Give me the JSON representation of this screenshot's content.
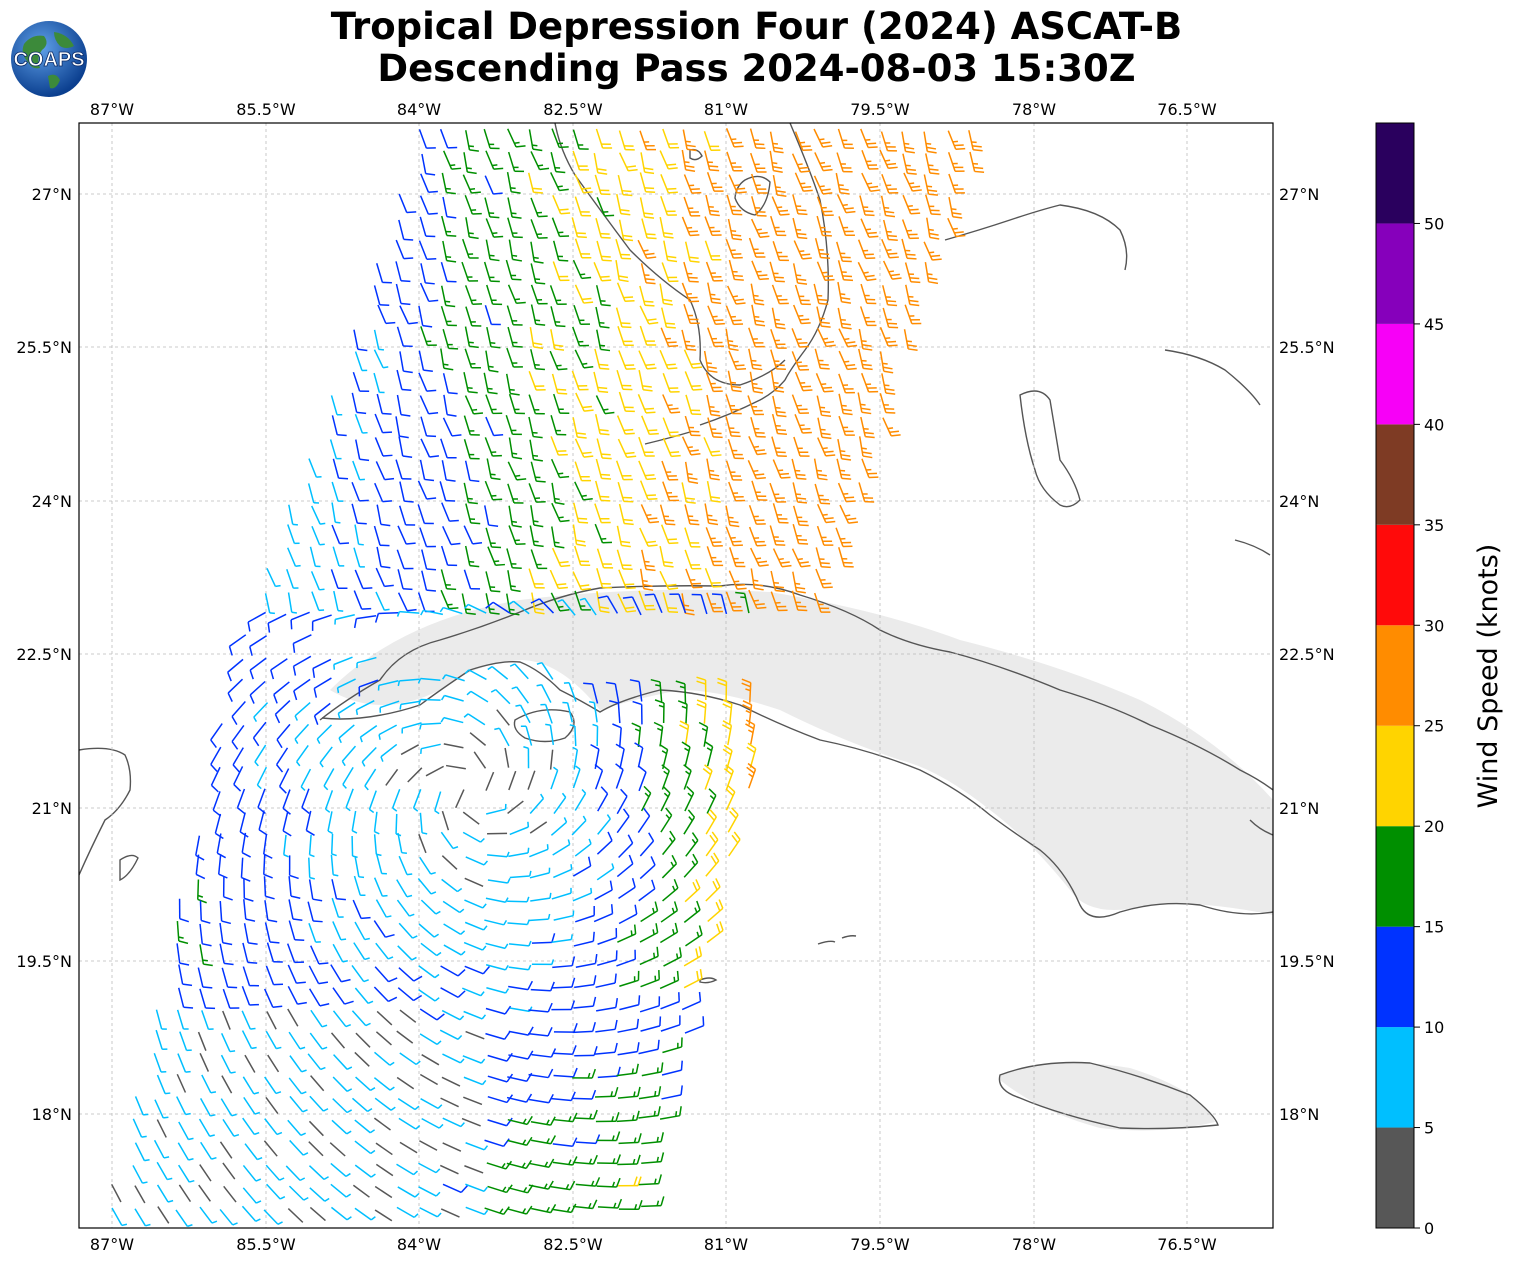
{
  "title": {
    "line1": "Tropical Depression Four (2024) ASCAT-B",
    "line2": "Descending Pass 2024-08-03 15:30Z"
  },
  "logo": {
    "text": "COAPS",
    "icon": "globe-logo-icon"
  },
  "axes": {
    "lon_ticks": [
      "87°W",
      "85.5°W",
      "84°W",
      "82.5°W",
      "81°W",
      "79.5°W",
      "78°W",
      "76.5°W"
    ],
    "lat_ticks": [
      "27°N",
      "25.5°N",
      "24°N",
      "22.5°N",
      "21°N",
      "19.5°N",
      "18°N"
    ],
    "lon_range": [
      -87.3,
      -75.6
    ],
    "lat_range": [
      16.9,
      27.7
    ],
    "grid": true
  },
  "colorbar": {
    "label": "Wind Speed (knots)",
    "ticks": [
      "0",
      "5",
      "10",
      "15",
      "20",
      "25",
      "30",
      "35",
      "40",
      "45",
      "50"
    ],
    "bins": [
      {
        "min": 0,
        "max": 5,
        "color": "#575757"
      },
      {
        "min": 5,
        "max": 10,
        "color": "#00bfff"
      },
      {
        "min": 10,
        "max": 15,
        "color": "#0033ff"
      },
      {
        "min": 15,
        "max": 20,
        "color": "#008f00"
      },
      {
        "min": 20,
        "max": 25,
        "color": "#ffd400"
      },
      {
        "min": 25,
        "max": 30,
        "color": "#ff8c00"
      },
      {
        "min": 30,
        "max": 35,
        "color": "#ff0a0a"
      },
      {
        "min": 35,
        "max": 40,
        "color": "#7e3b24"
      },
      {
        "min": 40,
        "max": 45,
        "color": "#f700f7"
      },
      {
        "min": 45,
        "max": 50,
        "color": "#8600bb"
      },
      {
        "min": 50,
        "max": 55,
        "color": "#2a005e"
      }
    ]
  },
  "colors": {
    "coastline": "#555555",
    "grid": "#bbbbbb",
    "land_relief": "#e6e6e6"
  }
}
